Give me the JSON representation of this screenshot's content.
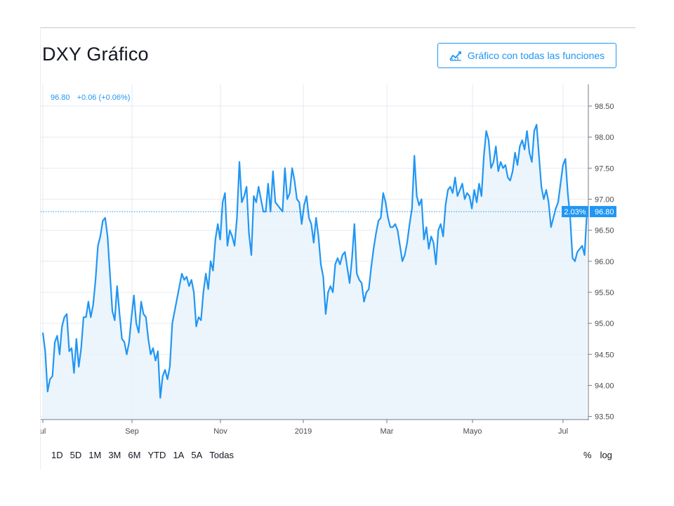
{
  "title": "DXY Gráfico",
  "full_chart_button": {
    "label": "Gráfico con todas las funciones",
    "icon": "chart-line-icon"
  },
  "legend": {
    "price": "96.80",
    "change": "+0.06 (+0.06%)"
  },
  "range_buttons": [
    "1D",
    "5D",
    "1M",
    "3M",
    "6M",
    "YTD",
    "1A",
    "5A",
    "Todas"
  ],
  "scale_toggles": [
    "%",
    "log"
  ],
  "colors": {
    "line": "#2196f3",
    "fill": "#e9f3fc",
    "grid": "#e6eaf0",
    "accent": "#2196f3"
  },
  "chart_data": {
    "type": "area",
    "x_tick_labels": [
      "ul",
      "Sep",
      "Nov",
      "2019",
      "Mar",
      "Mayo",
      "Jul"
    ],
    "y_ticks": [
      93.5,
      94.0,
      94.5,
      95.0,
      95.5,
      96.0,
      96.5,
      97.0,
      97.5,
      98.0,
      98.5
    ],
    "y_tick_labels": [
      "93.50",
      "94.00",
      "94.50",
      "95.00",
      "95.50",
      "96.00",
      "96.50",
      "97.00",
      "97.50",
      "98.00",
      "98.50"
    ],
    "ylim": [
      93.45,
      98.85
    ],
    "grid": true,
    "last_price_label": "96.80",
    "last_change_label": "2.03%",
    "last_value": 96.8,
    "series": [
      {
        "values": [
          94.85,
          94.55,
          93.9,
          94.1,
          94.15,
          94.7,
          94.8,
          94.5,
          94.95,
          95.1,
          95.15,
          94.55,
          94.6,
          94.2,
          94.75,
          94.3,
          94.6,
          95.1,
          95.1,
          95.35,
          95.1,
          95.3,
          95.7,
          96.25,
          96.4,
          96.65,
          96.7,
          96.4,
          95.8,
          95.2,
          95.05,
          95.6,
          95.15,
          94.75,
          94.7,
          94.5,
          94.7,
          95.1,
          95.45,
          95.0,
          94.85,
          95.35,
          95.15,
          95.1,
          94.75,
          94.5,
          94.6,
          94.4,
          94.55,
          93.8,
          94.15,
          94.25,
          94.1,
          94.3,
          95.0,
          95.2,
          95.4,
          95.6,
          95.8,
          95.7,
          95.75,
          95.6,
          95.7,
          95.5,
          94.95,
          95.1,
          95.05,
          95.5,
          95.8,
          95.55,
          96.0,
          95.85,
          96.35,
          96.6,
          96.35,
          96.95,
          97.1,
          96.25,
          96.5,
          96.4,
          96.25,
          96.7,
          97.6,
          96.95,
          97.05,
          97.2,
          96.45,
          96.1,
          97.05,
          96.95,
          97.2,
          97.0,
          96.8,
          96.8,
          97.25,
          96.8,
          97.45,
          96.95,
          96.9,
          96.85,
          96.8,
          97.5,
          97.0,
          97.1,
          97.5,
          97.3,
          97.0,
          96.95,
          96.6,
          96.9,
          97.05,
          96.7,
          96.6,
          96.3,
          96.7,
          96.4,
          95.95,
          95.75,
          95.15,
          95.5,
          95.6,
          95.5,
          95.95,
          96.05,
          95.95,
          96.1,
          96.15,
          95.9,
          95.65,
          96.05,
          96.6,
          95.8,
          95.7,
          95.65,
          95.35,
          95.5,
          95.55,
          95.9,
          96.2,
          96.45,
          96.65,
          96.7,
          97.1,
          96.95,
          96.7,
          96.55,
          96.55,
          96.6,
          96.5,
          96.25,
          96.0,
          96.1,
          96.3,
          96.6,
          96.85,
          97.7,
          97.05,
          96.9,
          97.0,
          96.35,
          96.55,
          96.2,
          96.4,
          96.3,
          95.95,
          96.5,
          96.6,
          96.4,
          96.9,
          97.15,
          97.2,
          97.1,
          97.35,
          97.05,
          97.15,
          97.25,
          97.0,
          97.1,
          97.05,
          96.85,
          97.15,
          96.95,
          97.25,
          97.05,
          97.7,
          98.1,
          97.95,
          97.5,
          97.6,
          97.85,
          97.45,
          97.6,
          97.5,
          97.55,
          97.35,
          97.3,
          97.45,
          97.75,
          97.55,
          97.85,
          97.95,
          97.8,
          98.1,
          97.75,
          97.6,
          98.1,
          98.2,
          97.7,
          97.2,
          97.0,
          97.15,
          96.95,
          96.55,
          96.7,
          96.85,
          96.95,
          97.25,
          97.55,
          97.65,
          97.1,
          96.7,
          96.05,
          96.0,
          96.15,
          96.2,
          96.25,
          96.1,
          96.8
        ]
      }
    ]
  }
}
